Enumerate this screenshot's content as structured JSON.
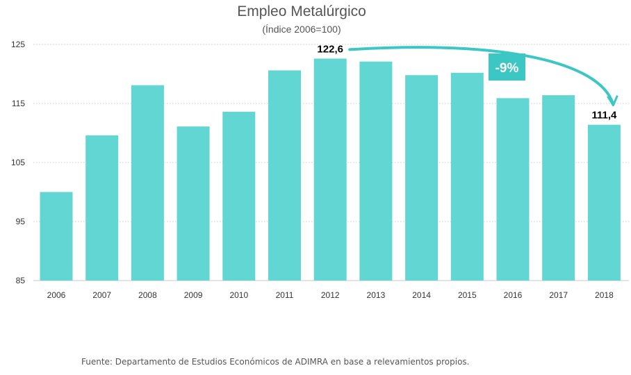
{
  "chart_data": {
    "type": "bar",
    "title": "Empleo Metalúrgico",
    "subtitle": "(Índice 2006=100)",
    "categories": [
      "2006",
      "2007",
      "2008",
      "2009",
      "2010",
      "2011",
      "2012",
      "2013",
      "2014",
      "2015",
      "2016",
      "2017",
      "2018"
    ],
    "values": [
      100.0,
      109.6,
      118.1,
      111.1,
      113.6,
      120.6,
      122.6,
      122.1,
      119.8,
      120.2,
      115.9,
      116.4,
      111.4
    ],
    "ylim": [
      85,
      125
    ],
    "yticks": [
      "85",
      "95",
      "105",
      "115",
      "125"
    ],
    "grid": true,
    "bar_color": "#62d6d3",
    "data_labels": [
      {
        "category": "2012",
        "text": "122,6"
      },
      {
        "category": "2018",
        "text": "111,4"
      }
    ],
    "annotation": {
      "text": "-9%",
      "from": "2012",
      "to": "2018",
      "color": "#3cc6c4"
    }
  },
  "source_text": "Fuente: Departamento de Estudios Económicos de ADIMRA en base a relevamientos propios."
}
